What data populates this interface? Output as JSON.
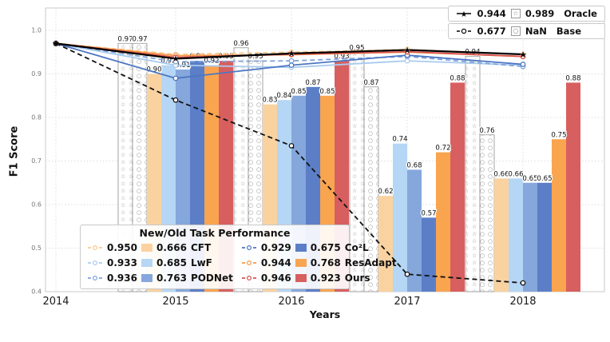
{
  "chart_data": {
    "type": "combo_bar_line",
    "title": "",
    "xlabel": "Years",
    "ylabel": "F1 Score",
    "ylim": [
      0.4,
      1.0
    ],
    "ytick_step": 0.1,
    "grid": "dotted",
    "years": [
      "2014",
      "2015",
      "2016",
      "2017",
      "2018"
    ],
    "bar_years": [
      "2015",
      "2016",
      "2017",
      "2018"
    ],
    "bar_series": [
      {
        "name": "Oracle",
        "pattern": "star",
        "glyph": "☆",
        "color": "#ffffff",
        "values": [
          0.97,
          0.96,
          0.95,
          0.94
        ]
      },
      {
        "name": "Base",
        "pattern": "circle",
        "glyph": "○",
        "color": "#ffffff",
        "values": [
          0.97,
          0.93,
          0.87,
          0.76
        ]
      },
      {
        "name": "CFT",
        "color": "#FAD2A0",
        "values": [
          0.9,
          0.83,
          0.62,
          0.66
        ]
      },
      {
        "name": "LwF",
        "color": "#B5D6F4",
        "values": [
          0.92,
          0.84,
          0.74,
          0.66
        ]
      },
      {
        "name": "PODNet",
        "color": "#85A7DB",
        "values": [
          0.91,
          0.85,
          0.68,
          0.65
        ]
      },
      {
        "name": "Co²L",
        "color": "#5B7EC7",
        "values": [
          0.93,
          0.87,
          0.57,
          0.65
        ]
      },
      {
        "name": "ResAdapt",
        "color": "#F9A44F",
        "values": [
          0.92,
          0.85,
          0.72,
          0.75
        ]
      },
      {
        "name": "Ours",
        "color": "#D85F5F",
        "values": [
          0.93,
          0.93,
          0.88,
          0.88
        ]
      }
    ],
    "line_series": [
      {
        "name": "CFT",
        "color": "#FAC98F",
        "dash": true,
        "marker": "circle",
        "values": [
          0.97,
          0.945,
          0.95,
          0.956,
          0.945
        ]
      },
      {
        "name": "LwF",
        "color": "#A9CBEE",
        "dash": false,
        "marker": "circle",
        "values": [
          0.97,
          0.92,
          0.915,
          0.93,
          0.92
        ]
      },
      {
        "name": "PODNet",
        "color": "#7FA3DC",
        "dash": true,
        "marker": "circle",
        "values": [
          0.97,
          0.928,
          0.93,
          0.94,
          0.917
        ]
      },
      {
        "name": "Co²L",
        "color": "#4C76C3",
        "dash": false,
        "marker": "circle",
        "values": [
          0.97,
          0.89,
          0.92,
          0.943,
          0.922
        ]
      },
      {
        "name": "ResAdapt",
        "color": "#F79646",
        "dash": false,
        "marker": "circle",
        "values": [
          0.97,
          0.942,
          0.944,
          0.95,
          0.94
        ]
      },
      {
        "name": "Ours",
        "color": "#D9534F",
        "dash": false,
        "marker": "circle",
        "values": [
          0.97,
          0.938,
          0.945,
          0.951,
          0.94
        ]
      },
      {
        "name": "Base",
        "color": "#111111",
        "dash": true,
        "marker": "circle",
        "values": [
          0.97,
          0.84,
          0.735,
          0.44,
          0.42
        ]
      },
      {
        "name": "Oracle",
        "color": "#000000",
        "dash": false,
        "marker": "star",
        "values": [
          0.97,
          0.935,
          0.947,
          0.955,
          0.945
        ]
      }
    ],
    "legend_position": {
      "oracle_base": "top-right",
      "methods": "bottom-center-left"
    }
  },
  "legend_oracle_base": {
    "rows": [
      {
        "line_value": "0.944",
        "bar_value": "0.989",
        "label": "Oracle",
        "marker": "star",
        "dash": false,
        "glyph": "☆"
      },
      {
        "line_value": "0.677",
        "bar_value": "NaN",
        "label": "Base",
        "marker": "circle",
        "dash": true,
        "glyph": "○"
      }
    ]
  },
  "legend_main": {
    "title": "New/Old Task Performance",
    "columns": [
      [
        {
          "new": "0.950",
          "old": "0.666",
          "name": "CFT",
          "line_color": "#FAC98F",
          "swatch_color": "#FAD2A0"
        },
        {
          "new": "0.933",
          "old": "0.685",
          "name": "LwF",
          "line_color": "#A9CBEE",
          "swatch_color": "#B5D6F4"
        },
        {
          "new": "0.936",
          "old": "0.763",
          "name": "PODNet",
          "line_color": "#7FA3DC",
          "swatch_color": "#85A7DB"
        }
      ],
      [
        {
          "new": "0.929",
          "old": "0.675",
          "name": "Co²L",
          "line_color": "#4C76C3",
          "swatch_color": "#5B7EC7"
        },
        {
          "new": "0.944",
          "old": "0.768",
          "name": "ResAdapt",
          "line_color": "#F79646",
          "swatch_color": "#F9A44F"
        },
        {
          "new": "0.946",
          "old": "0.923",
          "name": "Ours",
          "line_color": "#D9534F",
          "swatch_color": "#D85F5F"
        }
      ]
    ]
  },
  "style_colors": {
    "grid": "#dcdcdc",
    "frame": "#c8c8c8",
    "pattern_glyph": "#8a8a8a",
    "pattern_border": "#999999",
    "tick_label": "#777777",
    "year_label": "#1a1a1a",
    "bar_label": "#111111"
  }
}
